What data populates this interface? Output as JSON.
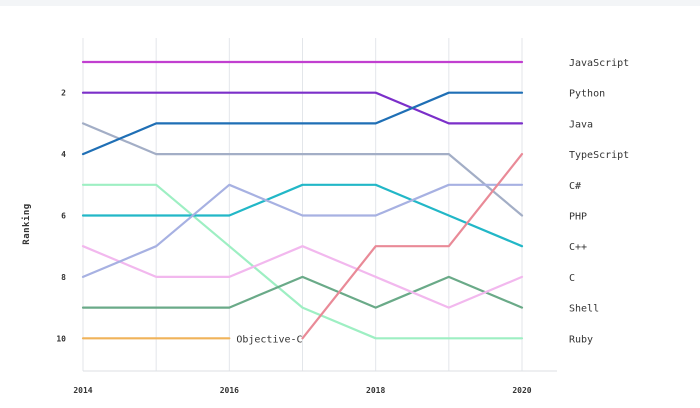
{
  "chart_data": {
    "type": "line",
    "title": "",
    "xlabel": "",
    "ylabel": "Ranking",
    "x": [
      2014,
      2015,
      2016,
      2017,
      2018,
      2019,
      2020
    ],
    "x_tick_labels": [
      "2014",
      "2016",
      "2018",
      "2020"
    ],
    "y_tick_labels": [
      "2",
      "4",
      "6",
      "8",
      "10"
    ],
    "ylim": [
      11,
      0
    ],
    "y_inverted": true,
    "grid": "vertical",
    "annotations": [
      {
        "text": "Objective-C"
      }
    ],
    "series": [
      {
        "name": "JavaScript",
        "color": "#c13fd0",
        "values": [
          1,
          1,
          1,
          1,
          1,
          1,
          1
        ]
      },
      {
        "name": "Python",
        "color": "#1f6fb5",
        "values": [
          4,
          3,
          3,
          3,
          3,
          2,
          2
        ]
      },
      {
        "name": "Java",
        "color": "#7b2fc9",
        "values": [
          2,
          2,
          2,
          2,
          2,
          3,
          3
        ]
      },
      {
        "name": "TypeScript",
        "color": "#e98a97",
        "values": [
          null,
          null,
          null,
          10,
          7,
          7,
          4
        ]
      },
      {
        "name": "C#",
        "color": "#a7b1e2",
        "values": [
          8,
          7,
          5,
          6,
          6,
          5,
          5
        ]
      },
      {
        "name": "PHP",
        "color": "#a3aec6",
        "values": [
          3,
          4,
          4,
          4,
          4,
          4,
          6
        ]
      },
      {
        "name": "C++",
        "color": "#22b7c7",
        "values": [
          6,
          6,
          6,
          5,
          5,
          6,
          7
        ]
      },
      {
        "name": "C",
        "color": "#f2b8ee",
        "values": [
          7,
          8,
          8,
          7,
          8,
          9,
          8
        ]
      },
      {
        "name": "Shell",
        "color": "#6aaa88",
        "values": [
          9,
          9,
          9,
          8,
          9,
          8,
          9
        ]
      },
      {
        "name": "Ruby",
        "color": "#9eefc3",
        "values": [
          5,
          5,
          7,
          9,
          10,
          10,
          10
        ]
      },
      {
        "name": "Objective-C",
        "color": "#f0b35a",
        "values": [
          10,
          10,
          10,
          null,
          null,
          null,
          null
        ]
      }
    ]
  }
}
